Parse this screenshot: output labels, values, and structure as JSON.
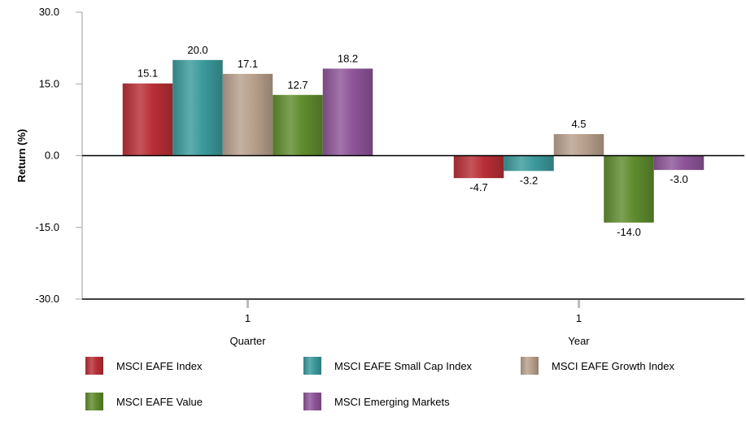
{
  "chart_data": {
    "type": "bar",
    "categories": [
      {
        "top": "1",
        "bottom": "Quarter"
      },
      {
        "top": "1",
        "bottom": "Year"
      }
    ],
    "series": [
      {
        "name": "MSCI EAFE Index",
        "color": "#b82f36",
        "values": [
          15.1,
          -4.7
        ]
      },
      {
        "name": "MSCI EAFE Small Cap Index",
        "color": "#3b9a9c",
        "values": [
          20.0,
          -3.2
        ]
      },
      {
        "name": "MSCI EAFE Growth Index",
        "color": "#b8a08c",
        "values": [
          17.1,
          4.5
        ]
      },
      {
        "name": "MSCI EAFE Value",
        "color": "#5f8c2e",
        "values": [
          12.7,
          -14.0
        ]
      },
      {
        "name": "MSCI Emerging Markets",
        "color": "#8e5599",
        "values": [
          18.2,
          -3.0
        ]
      }
    ],
    "ylabel": "Return (%)",
    "ylim": [
      -30,
      30
    ],
    "yticks": [
      30.0,
      15.0,
      0.0,
      -15.0,
      -30.0
    ],
    "legend_position": "bottom",
    "grid": false
  }
}
